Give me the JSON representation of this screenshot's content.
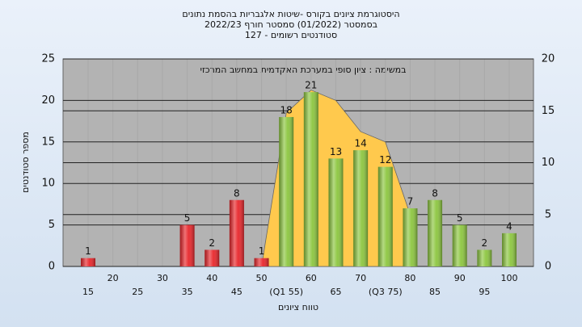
{
  "chart_data": {
    "type": "bar",
    "title": [
      "היסטוגרמת ציונים בקורס -שיטות אלגבריות בהסמת נתונים",
      "בסמסטר  (01/2022)  סמסטר חורף 2022/23",
      "סטודנטים רשומים - 127"
    ],
    "annotation": "במשימה : ציון סופי במערכת האקדמית במחשב המרכזי",
    "y_label": "מספר סטודנטים",
    "x_label": "טווח ציונים",
    "categories": [
      "15",
      "20",
      "25",
      "30",
      "35",
      "40",
      "45",
      "50",
      "(Q1 55)",
      "60",
      "65",
      "70",
      "(Q3 75)",
      "80",
      "85",
      "90",
      "95",
      "100"
    ],
    "values": [
      1,
      null,
      null,
      null,
      5,
      2,
      8,
      1,
      18,
      21,
      13,
      14,
      12,
      7,
      8,
      5,
      2,
      4
    ],
    "colors": [
      "#e8262b",
      "#e8262b",
      "#e8262b",
      "#e8262b",
      "#e8262b",
      "#e8262b",
      "#e8262b",
      "#e8262b",
      "#8cc63f",
      "#8cc63f",
      "#8cc63f",
      "#8cc63f",
      "#8cc63f",
      "#8cc63f",
      "#8cc63f",
      "#8cc63f",
      "#8cc63f",
      "#8cc63f"
    ],
    "area": {
      "axis": "y2",
      "color": "#ffc94d",
      "values": [
        null,
        null,
        null,
        null,
        null,
        null,
        null,
        0,
        14.8,
        17,
        16,
        13,
        12,
        5,
        null,
        null,
        null,
        null
      ]
    },
    "ylim": [
      0,
      25
    ],
    "yticks": [
      0,
      5,
      10,
      15,
      20,
      25
    ],
    "y2lim": [
      0,
      20
    ],
    "y2ticks": [
      0,
      5,
      10,
      15,
      20
    ],
    "grid": true
  }
}
